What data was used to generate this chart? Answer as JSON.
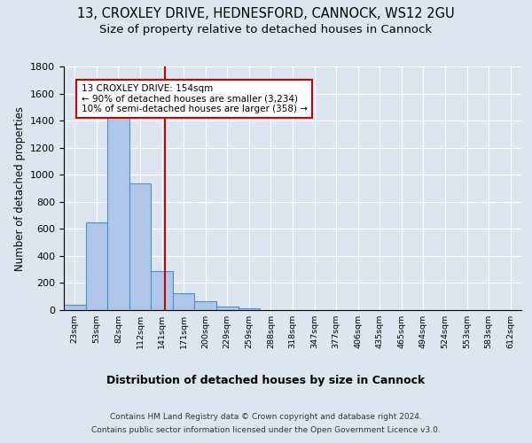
{
  "title1": "13, CROXLEY DRIVE, HEDNESFORD, CANNOCK, WS12 2GU",
  "title2": "Size of property relative to detached houses in Cannock",
  "xlabel": "Distribution of detached houses by size in Cannock",
  "ylabel": "Number of detached properties",
  "footnote1": "Contains HM Land Registry data © Crown copyright and database right 2024.",
  "footnote2": "Contains public sector information licensed under the Open Government Licence v3.0.",
  "bin_labels": [
    "23sqm",
    "53sqm",
    "82sqm",
    "112sqm",
    "141sqm",
    "171sqm",
    "200sqm",
    "229sqm",
    "259sqm",
    "288sqm",
    "318sqm",
    "347sqm",
    "377sqm",
    "406sqm",
    "435sqm",
    "465sqm",
    "494sqm",
    "524sqm",
    "553sqm",
    "583sqm",
    "612sqm"
  ],
  "bar_values": [
    40,
    650,
    1470,
    935,
    290,
    125,
    65,
    25,
    13,
    0,
    0,
    0,
    0,
    0,
    0,
    0,
    0,
    0,
    0,
    0,
    0
  ],
  "bar_color": "#aec6e8",
  "bar_edge_color": "#4a90c4",
  "vline_bin_index": 4.15,
  "annotation_text": "13 CROXLEY DRIVE: 154sqm\n← 90% of detached houses are smaller (3,234)\n10% of semi-detached houses are larger (358) →",
  "annotation_box_color": "#ffffff",
  "annotation_box_edge_color": "#cc0000",
  "vline_color": "#cc0000",
  "ylim": [
    0,
    1800
  ],
  "yticks": [
    0,
    200,
    400,
    600,
    800,
    1000,
    1200,
    1400,
    1600,
    1800
  ],
  "background_color": "#dde5f0",
  "axes_bg_color": "#dde5f0",
  "grid_color": "#ffffff",
  "title1_fontsize": 10.5,
  "title2_fontsize": 9.5,
  "xlabel_fontsize": 9,
  "ylabel_fontsize": 8.5,
  "footnote_fontsize": 6.5
}
